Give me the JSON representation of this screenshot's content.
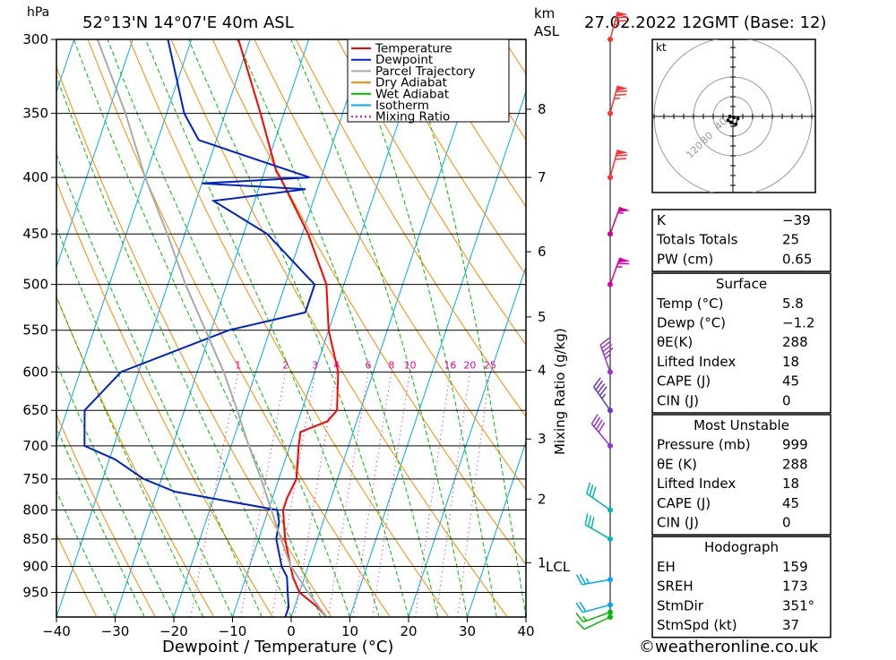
{
  "header": {
    "hpa_unit": "hPa",
    "location": "52°13'N  14°07'E  40m  ASL",
    "km_label": "km",
    "asl_label": "ASL",
    "datetime": "27.02.2022  12GMT  (Base: 12)"
  },
  "footer": {
    "copyright": "©weatheronline.co.uk"
  },
  "colors": {
    "temperature": "#ff0000",
    "dewpoint": "#0022cc",
    "parcel": "#aaaaaa",
    "dry_adiabat": "#ff8800",
    "wet_adiabat": "#00bb00",
    "isotherm": "#00aaee",
    "mixing_ratio": "#ee0099"
  },
  "legend": [
    {
      "label": "Temperature",
      "style": "solid",
      "color": "#ff0000"
    },
    {
      "label": "Dewpoint",
      "style": "solid",
      "color": "#0022cc"
    },
    {
      "label": "Parcel Trajectory",
      "style": "solid",
      "color": "#aaaaaa"
    },
    {
      "label": "Dry Adiabat",
      "style": "solid",
      "color": "#ff8800"
    },
    {
      "label": "Wet Adiabat",
      "style": "solid",
      "color": "#00bb00"
    },
    {
      "label": "Isotherm",
      "style": "solid",
      "color": "#00aaee"
    },
    {
      "label": "Mixing Ratio",
      "style": "dotted",
      "color": "#ee0099"
    }
  ],
  "chart_data": {
    "type": "line",
    "xlabel": "Dewpoint / Temperature (°C)",
    "x_ticks": [
      -40,
      -30,
      -20,
      -10,
      0,
      10,
      20,
      30,
      40
    ],
    "xlim": [
      -40,
      40
    ],
    "pressure_ticks": [
      300,
      350,
      400,
      450,
      500,
      550,
      600,
      650,
      700,
      750,
      800,
      850,
      900,
      950
    ],
    "ylim_hpa": [
      1000,
      300
    ],
    "km_ticks": [
      {
        "label": "8",
        "p": 347
      },
      {
        "label": "7",
        "p": 400
      },
      {
        "label": "6",
        "p": 467
      },
      {
        "label": "5",
        "p": 535
      },
      {
        "label": "4",
        "p": 598
      },
      {
        "label": "3",
        "p": 690
      },
      {
        "label": "2",
        "p": 782
      },
      {
        "label": "1",
        "p": 893
      }
    ],
    "lcl_label": "LCL",
    "lcl_p": 899,
    "mixing_ratio_label": "Mixing Ratio (g/kg)",
    "mixing_ratio_labels": [
      "1",
      "2",
      "3",
      "4",
      "6",
      "8",
      "10",
      "16",
      "20",
      "25"
    ],
    "series": [
      {
        "name": "Temperature",
        "points": [
          [
            1000,
            6
          ],
          [
            980,
            4
          ],
          [
            950,
            0
          ],
          [
            920,
            -2
          ],
          [
            900,
            -3
          ],
          [
            850,
            -5.5
          ],
          [
            800,
            -7.5
          ],
          [
            780,
            -7.5
          ],
          [
            750,
            -7
          ],
          [
            700,
            -8.5
          ],
          [
            680,
            -9
          ],
          [
            665,
            -5
          ],
          [
            650,
            -4
          ],
          [
            600,
            -6
          ],
          [
            550,
            -10
          ],
          [
            500,
            -13
          ],
          [
            450,
            -19
          ],
          [
            400,
            -27
          ],
          [
            395,
            -28
          ],
          [
            350,
            -34
          ],
          [
            300,
            -42
          ]
        ]
      },
      {
        "name": "Dewpoint",
        "points": [
          [
            1000,
            -1
          ],
          [
            980,
            -1
          ],
          [
            950,
            -2
          ],
          [
            920,
            -3
          ],
          [
            900,
            -4.5
          ],
          [
            850,
            -7
          ],
          [
            820,
            -7.5
          ],
          [
            800,
            -8.5
          ],
          [
            770,
            -27
          ],
          [
            750,
            -33
          ],
          [
            720,
            -39
          ],
          [
            700,
            -45
          ],
          [
            650,
            -47
          ],
          [
            600,
            -43
          ],
          [
            550,
            -27
          ],
          [
            530,
            -15
          ],
          [
            500,
            -15
          ],
          [
            450,
            -26
          ],
          [
            420,
            -37
          ],
          [
            410,
            -22
          ],
          [
            405,
            -40
          ],
          [
            400,
            -22
          ],
          [
            370,
            -43
          ],
          [
            350,
            -47
          ],
          [
            300,
            -54
          ]
        ]
      },
      {
        "name": "Parcel Trajectory",
        "points": [
          [
            1000,
            6
          ],
          [
            950,
            1.5
          ],
          [
            899,
            -3
          ],
          [
            850,
            -6.2
          ],
          [
            800,
            -9.5
          ],
          [
            750,
            -13
          ],
          [
            700,
            -17
          ],
          [
            650,
            -21
          ],
          [
            600,
            -25.5
          ],
          [
            550,
            -31
          ],
          [
            500,
            -37
          ],
          [
            450,
            -43
          ],
          [
            400,
            -50
          ],
          [
            350,
            -57
          ],
          [
            300,
            -66
          ]
        ]
      }
    ],
    "winds": [
      {
        "p": 1000,
        "dir": 245,
        "kt": 10,
        "color": "#00bb00"
      },
      {
        "p": 990,
        "dir": 250,
        "kt": 15,
        "color": "#00bb00"
      },
      {
        "p": 975,
        "dir": 255,
        "kt": 20,
        "color": "#00aaee"
      },
      {
        "p": 925,
        "dir": 260,
        "kt": 25,
        "color": "#00aaee"
      },
      {
        "p": 850,
        "dir": 300,
        "kt": 30,
        "color": "#00bbaa"
      },
      {
        "p": 800,
        "dir": 305,
        "kt": 30,
        "color": "#00bbaa"
      },
      {
        "p": 700,
        "dir": 320,
        "kt": 40,
        "color": "#9933cc"
      },
      {
        "p": 650,
        "dir": 325,
        "kt": 45,
        "color": "#6633cc"
      },
      {
        "p": 600,
        "dir": 340,
        "kt": 45,
        "color": "#9933cc"
      },
      {
        "p": 500,
        "dir": 20,
        "kt": 65,
        "color": "#dd00aa"
      },
      {
        "p": 450,
        "dir": 20,
        "kt": 55,
        "color": "#cc0099"
      },
      {
        "p": 400,
        "dir": 15,
        "kt": 70,
        "color": "#ff3333"
      },
      {
        "p": 350,
        "dir": 15,
        "kt": 75,
        "color": "#ff3333"
      },
      {
        "p": 300,
        "dir": 15,
        "kt": 75,
        "color": "#ff3333"
      }
    ],
    "hodograph": {
      "unit": "kt",
      "rings_kt": [
        20,
        40,
        80,
        120
      ],
      "ring_labels": [
        "40",
        "80",
        "120"
      ],
      "trace_uv_kt": [
        [
          5,
          2
        ],
        [
          3,
          8
        ],
        [
          -2,
          6
        ],
        [
          -5,
          4
        ],
        [
          -3,
          0
        ],
        [
          1,
          1
        ]
      ]
    }
  },
  "indices": {
    "top": [
      {
        "label": "K",
        "value": "-39"
      },
      {
        "label": "Totals Totals",
        "value": "25"
      },
      {
        "label": "PW (cm)",
        "value": "0.65"
      }
    ],
    "surface": {
      "title": "Surface",
      "rows": [
        {
          "label": "Temp (°C)",
          "value": "5.8"
        },
        {
          "label": "Dewp (°C)",
          "value": "-1.2"
        },
        {
          "label": "θE(K)",
          "value": "288"
        },
        {
          "label": "Lifted Index",
          "value": "18"
        },
        {
          "label": "CAPE (J)",
          "value": "45"
        },
        {
          "label": "CIN (J)",
          "value": "0"
        }
      ]
    },
    "most_unstable": {
      "title": "Most Unstable",
      "rows": [
        {
          "label": "Pressure (mb)",
          "value": "999"
        },
        {
          "label": "θE (K)",
          "value": "288"
        },
        {
          "label": "Lifted Index",
          "value": "18"
        },
        {
          "label": "CAPE (J)",
          "value": "45"
        },
        {
          "label": "CIN (J)",
          "value": "0"
        }
      ]
    },
    "hodograph": {
      "title": "Hodograph",
      "rows": [
        {
          "label": "EH",
          "value": "159"
        },
        {
          "label": "SREH",
          "value": "173"
        },
        {
          "label": "StmDir",
          "value": "351°"
        },
        {
          "label": "StmSpd (kt)",
          "value": "37"
        }
      ]
    }
  }
}
